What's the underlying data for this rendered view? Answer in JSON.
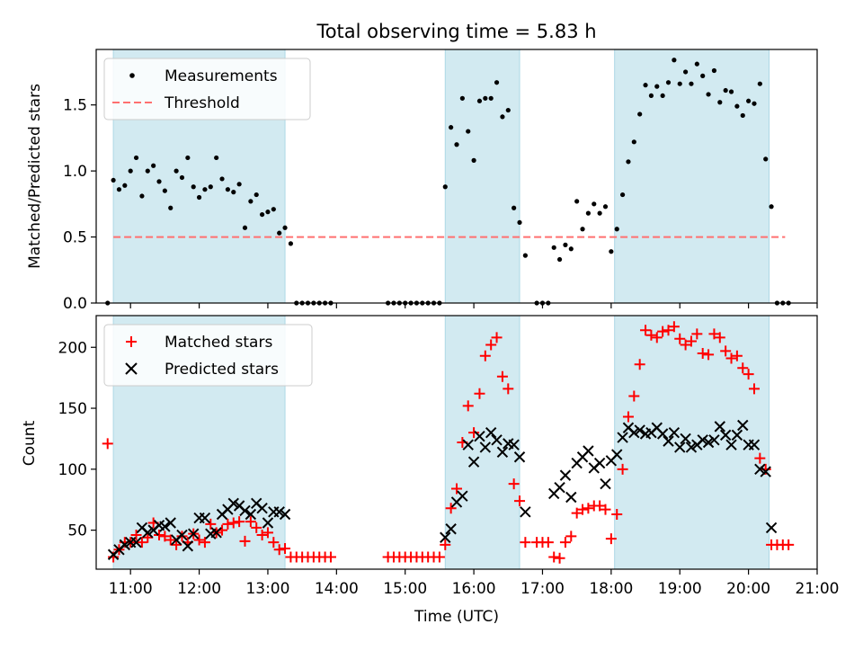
{
  "figure": {
    "title": "Total observing time = 5.83 h",
    "xlabel": "Time (UTC)",
    "x_ticks": [
      "11:00",
      "12:00",
      "13:00",
      "14:00",
      "15:00",
      "16:00",
      "17:00",
      "18:00",
      "19:00",
      "20:00",
      "21:00"
    ]
  },
  "colors": {
    "band": "#add8e6",
    "measurement": "#000000",
    "threshold": "#ff7070",
    "matched": "#ff0000",
    "predicted": "#000000"
  },
  "chart_data": [
    {
      "type": "scatter",
      "ylabel": "Matched/Predicted stars",
      "xlim": [
        "10:30",
        "21:00"
      ],
      "ylim": [
        0,
        1.92
      ],
      "y_ticks": [
        "0.0",
        "0.5",
        "1.0",
        "1.5"
      ],
      "legend": {
        "placement": "top-left",
        "entries": [
          "Measurements",
          "Threshold"
        ]
      },
      "observing_windows": [
        [
          "10:45",
          "13:15"
        ],
        [
          "15:35",
          "16:40"
        ],
        [
          "18:03",
          "20:18"
        ]
      ],
      "threshold": {
        "value": 0.5,
        "x_range": [
          "10:45",
          "20:32"
        ]
      },
      "series": [
        {
          "name": "Measurements",
          "x": [
            "10:40",
            "10:45",
            "10:50",
            "10:55",
            "11:00",
            "11:05",
            "11:10",
            "11:15",
            "11:20",
            "11:25",
            "11:30",
            "11:35",
            "11:40",
            "11:45",
            "11:50",
            "11:55",
            "12:00",
            "12:05",
            "12:10",
            "12:15",
            "12:20",
            "12:25",
            "12:30",
            "12:35",
            "12:40",
            "12:45",
            "12:50",
            "12:55",
            "13:00",
            "13:05",
            "13:10",
            "13:15",
            "13:20",
            "13:25",
            "13:30",
            "13:35",
            "13:40",
            "13:45",
            "13:50",
            "13:55",
            "14:45",
            "14:50",
            "14:55",
            "15:00",
            "15:05",
            "15:10",
            "15:15",
            "15:20",
            "15:25",
            "15:30",
            "15:35",
            "15:40",
            "15:45",
            "15:50",
            "15:55",
            "16:00",
            "16:05",
            "16:10",
            "16:15",
            "16:20",
            "16:25",
            "16:30",
            "16:35",
            "16:40",
            "16:45",
            "16:55",
            "17:00",
            "17:05",
            "17:10",
            "17:15",
            "17:20",
            "17:25",
            "17:30",
            "17:35",
            "17:40",
            "17:45",
            "17:50",
            "17:55",
            "18:00",
            "18:05",
            "18:10",
            "18:15",
            "18:20",
            "18:25",
            "18:30",
            "18:35",
            "18:40",
            "18:45",
            "18:50",
            "18:55",
            "19:00",
            "19:05",
            "19:10",
            "19:15",
            "19:20",
            "19:25",
            "19:30",
            "19:35",
            "19:40",
            "19:45",
            "19:50",
            "19:55",
            "20:00",
            "20:05",
            "20:10",
            "20:15",
            "20:20",
            "20:25",
            "20:30",
            "20:35"
          ],
          "y": [
            0.0,
            0.93,
            0.86,
            0.89,
            1.0,
            1.1,
            0.81,
            1.0,
            1.04,
            0.92,
            0.85,
            0.72,
            1.0,
            0.95,
            1.1,
            0.88,
            0.8,
            0.86,
            0.88,
            1.1,
            0.94,
            0.86,
            0.84,
            0.9,
            0.57,
            0.77,
            0.82,
            0.67,
            0.69,
            0.71,
            0.53,
            0.57,
            0.45,
            0.0,
            0.0,
            0.0,
            0.0,
            0.0,
            0.0,
            0.0,
            0.0,
            0.0,
            0.0,
            0.0,
            0.0,
            0.0,
            0.0,
            0.0,
            0.0,
            0.0,
            0.88,
            1.33,
            1.2,
            1.55,
            1.3,
            1.08,
            1.53,
            1.55,
            1.55,
            1.67,
            1.41,
            1.46,
            0.72,
            0.61,
            0.36,
            0.0,
            0.0,
            0.0,
            0.42,
            0.33,
            0.44,
            0.41,
            0.77,
            0.56,
            0.68,
            0.75,
            0.68,
            0.73,
            0.39,
            0.56,
            0.82,
            1.07,
            1.22,
            1.43,
            1.65,
            1.57,
            1.64,
            1.57,
            1.67,
            1.84,
            1.66,
            1.75,
            1.66,
            1.81,
            1.72,
            1.58,
            1.76,
            1.52,
            1.61,
            1.6,
            1.49,
            1.42,
            1.53,
            1.51,
            1.66,
            1.09,
            0.73,
            0.0,
            0.0,
            0.0
          ]
        }
      ]
    },
    {
      "type": "scatter",
      "ylabel": "Count",
      "xlim": [
        "10:30",
        "21:00"
      ],
      "ylim": [
        18,
        226
      ],
      "y_ticks": [
        "50",
        "100",
        "150",
        "200"
      ],
      "legend": {
        "placement": "top-left",
        "entries": [
          "Matched stars",
          "Predicted stars"
        ]
      },
      "observing_windows": [
        [
          "10:45",
          "13:15"
        ],
        [
          "15:35",
          "16:40"
        ],
        [
          "18:03",
          "20:18"
        ]
      ],
      "series": [
        {
          "name": "Matched stars",
          "marker": "plus",
          "x": [
            "10:40",
            "10:45",
            "10:50",
            "10:55",
            "11:00",
            "11:05",
            "11:10",
            "11:15",
            "11:20",
            "11:25",
            "11:30",
            "11:35",
            "11:40",
            "11:45",
            "11:50",
            "11:55",
            "12:00",
            "12:05",
            "12:10",
            "12:15",
            "12:20",
            "12:25",
            "12:30",
            "12:35",
            "12:40",
            "12:45",
            "12:50",
            "12:55",
            "13:00",
            "13:05",
            "13:10",
            "13:15",
            "13:20",
            "13:25",
            "13:30",
            "13:35",
            "13:40",
            "13:45",
            "13:50",
            "13:55",
            "14:45",
            "14:50",
            "14:55",
            "15:00",
            "15:05",
            "15:10",
            "15:15",
            "15:20",
            "15:25",
            "15:30",
            "15:35",
            "15:40",
            "15:45",
            "15:50",
            "15:55",
            "16:00",
            "16:05",
            "16:10",
            "16:15",
            "16:20",
            "16:25",
            "16:30",
            "16:35",
            "16:40",
            "16:45",
            "16:55",
            "17:00",
            "17:05",
            "17:10",
            "17:15",
            "17:20",
            "17:25",
            "17:30",
            "17:35",
            "17:40",
            "17:45",
            "17:50",
            "17:55",
            "18:00",
            "18:05",
            "18:10",
            "18:15",
            "18:20",
            "18:25",
            "18:30",
            "18:35",
            "18:40",
            "18:45",
            "18:50",
            "18:55",
            "19:00",
            "19:05",
            "19:10",
            "19:15",
            "19:20",
            "19:25",
            "19:30",
            "19:35",
            "19:40",
            "19:45",
            "19:50",
            "19:55",
            "20:00",
            "20:05",
            "20:10",
            "20:15",
            "20:20",
            "20:25",
            "20:30",
            "20:35"
          ],
          "y": [
            121,
            28,
            34,
            40,
            40,
            46,
            40,
            44,
            56,
            46,
            45,
            42,
            38,
            45,
            40,
            47,
            42,
            40,
            55,
            48,
            50,
            55,
            56,
            57,
            41,
            57,
            52,
            46,
            48,
            40,
            34,
            35,
            28,
            28,
            28,
            28,
            28,
            28,
            28,
            28,
            28,
            28,
            28,
            28,
            28,
            28,
            28,
            28,
            28,
            28,
            38,
            68,
            84,
            122,
            152,
            130,
            162,
            193,
            202,
            208,
            176,
            166,
            88,
            74,
            40,
            40,
            40,
            40,
            28,
            27,
            40,
            45,
            64,
            67,
            68,
            70,
            70,
            67,
            43,
            63,
            100,
            143,
            160,
            186,
            214,
            210,
            208,
            213,
            214,
            217,
            207,
            202,
            205,
            211,
            195,
            194,
            211,
            208,
            197,
            191,
            193,
            183,
            178,
            166,
            109,
            100,
            38,
            38,
            38,
            38
          ]
        },
        {
          "name": "Predicted stars",
          "marker": "x",
          "x": [
            "10:45",
            "10:50",
            "10:55",
            "11:00",
            "11:05",
            "11:10",
            "11:15",
            "11:20",
            "11:25",
            "11:30",
            "11:35",
            "11:40",
            "11:45",
            "11:50",
            "11:55",
            "12:00",
            "12:05",
            "12:10",
            "12:15",
            "12:20",
            "12:25",
            "12:30",
            "12:35",
            "12:40",
            "12:45",
            "12:50",
            "12:55",
            "13:00",
            "13:05",
            "13:10",
            "13:15",
            "15:35",
            "15:40",
            "15:45",
            "15:50",
            "15:55",
            "16:00",
            "16:05",
            "16:10",
            "16:15",
            "16:20",
            "16:25",
            "16:30",
            "16:35",
            "16:40",
            "16:45",
            "17:10",
            "17:15",
            "17:20",
            "17:25",
            "17:30",
            "17:35",
            "17:40",
            "17:45",
            "17:50",
            "17:55",
            "18:00",
            "18:05",
            "18:10",
            "18:15",
            "18:20",
            "18:25",
            "18:30",
            "18:35",
            "18:40",
            "18:45",
            "18:50",
            "18:55",
            "19:00",
            "19:05",
            "19:10",
            "19:15",
            "19:20",
            "19:25",
            "19:30",
            "19:35",
            "19:40",
            "19:45",
            "19:50",
            "19:55",
            "20:00",
            "20:05",
            "20:10",
            "20:15",
            "20:20"
          ],
          "y": [
            30,
            34,
            38,
            40,
            40,
            52,
            48,
            50,
            54,
            53,
            56,
            42,
            46,
            37,
            47,
            60,
            60,
            47,
            48,
            63,
            67,
            72,
            70,
            66,
            63,
            72,
            68,
            56,
            65,
            65,
            63,
            44,
            51,
            73,
            78,
            120,
            106,
            127,
            118,
            130,
            124,
            114,
            121,
            120,
            110,
            65,
            80,
            85,
            95,
            77,
            105,
            110,
            115,
            101,
            105,
            88,
            107,
            112,
            126,
            134,
            130,
            132,
            129,
            130,
            134,
            129,
            123,
            130,
            118,
            125,
            118,
            120,
            124,
            122,
            124,
            135,
            128,
            120,
            128,
            136,
            120,
            120,
            100,
            98,
            52
          ]
        }
      ]
    }
  ]
}
